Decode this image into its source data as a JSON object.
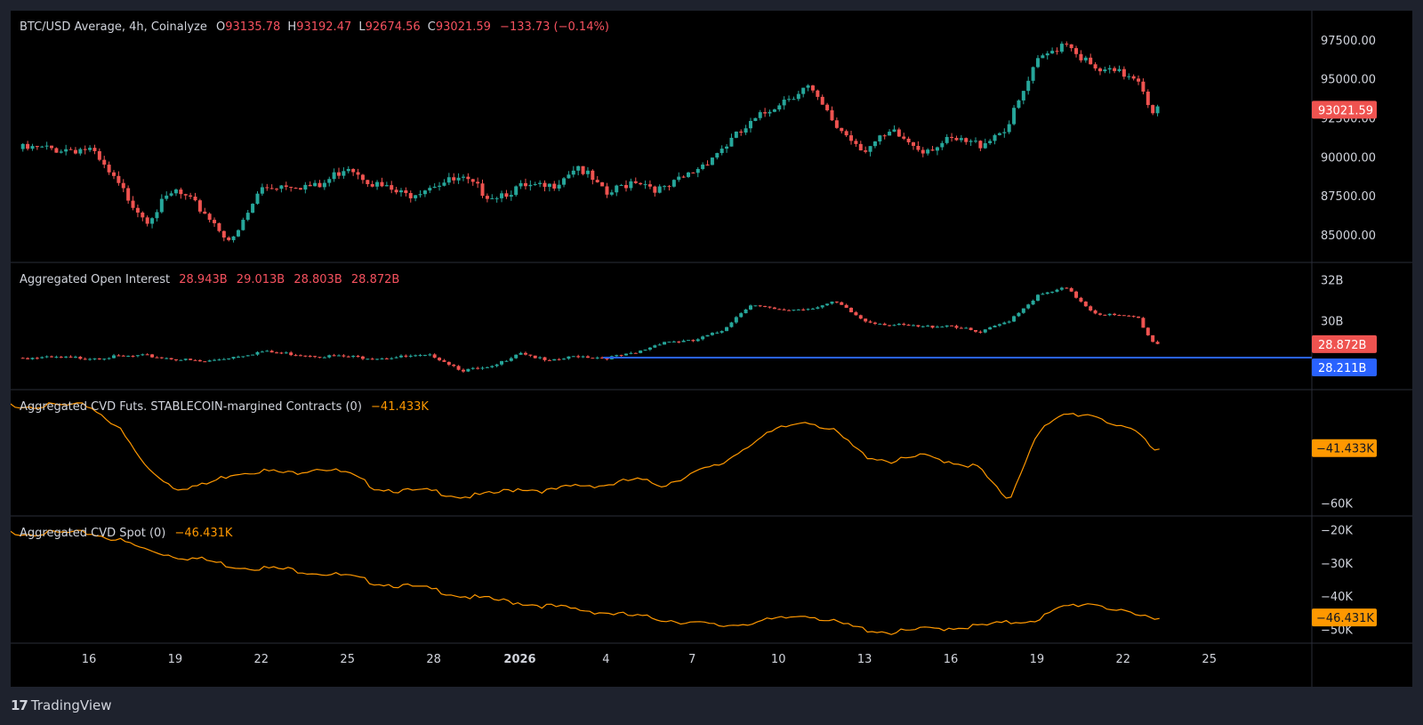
{
  "legends": {
    "price": {
      "label": "BTC/USD Average, 4h, Coinalyze",
      "o_prefix": "O",
      "o": "93135.78",
      "h_prefix": "H",
      "h": "93192.47",
      "l_prefix": "L",
      "l": "92674.56",
      "c_prefix": "C",
      "c": "93021.59",
      "change": "−133.73 (−0.14%)"
    },
    "oi": {
      "label": "Aggregated Open Interest",
      "v1": "28.943B",
      "v2": "29.013B",
      "v3": "28.803B",
      "v4": "28.872B"
    },
    "cvd_futs": {
      "label": "Aggregated CVD Futs. STABLECOIN-margined Contracts (0)",
      "value": "−41.433K"
    },
    "cvd_spot": {
      "label": "Aggregated CVD Spot (0)",
      "value": "−46.431K"
    }
  },
  "brand": {
    "logo": "17",
    "name": "TradingView"
  },
  "colors": {
    "up": "#26a69a",
    "down": "#ef5350",
    "cvd": "#ff9800",
    "hline": "#2962ff",
    "grid_border": "#2a2e39"
  },
  "chart_data": [
    {
      "type": "candlestick",
      "title": "BTC/USD Average, 4h, Coinalyze",
      "x_ticks": [
        "16",
        "19",
        "22",
        "25",
        "28",
        "2026",
        "4",
        "7",
        "10",
        "13",
        "16",
        "19",
        "22",
        "25"
      ],
      "y_ticks": [
        "97500.00",
        "95000.00",
        "92500.00",
        "90000.00",
        "87500.00",
        "85000.00"
      ],
      "ylim": [
        83800,
        98800
      ],
      "last_price_label": "93021.59",
      "last_price": 93021.59,
      "anchors_x_days": [
        0,
        1,
        2,
        3,
        4,
        5,
        6,
        7,
        8,
        9,
        10,
        11,
        12,
        13,
        14,
        15,
        16,
        17,
        18,
        19,
        20,
        21,
        22,
        23,
        24,
        25,
        26,
        27,
        28,
        29,
        30,
        31,
        32,
        33,
        34,
        35,
        36,
        36.5,
        37,
        37.3
      ],
      "anchors_close": [
        90500,
        88200,
        86000,
        87800,
        86500,
        84500,
        88000,
        88300,
        88000,
        89500,
        88200,
        87500,
        88300,
        88500,
        87500,
        88000,
        88000,
        89500,
        87500,
        88600,
        87800,
        89000,
        90500,
        92000,
        93500,
        94500,
        92000,
        90500,
        91500,
        90500,
        91000,
        90800,
        92000,
        96000,
        97500,
        95500,
        95300,
        95200,
        93000,
        93021
      ]
    },
    {
      "type": "line",
      "title": "Aggregated Open Interest",
      "y_ticks": [
        "32B",
        "30B"
      ],
      "ylim": [
        27.0,
        32.5
      ],
      "last_value_label": "28.872B",
      "hline_label": "28.211B",
      "hline_value": 28.211,
      "anchors_x_days": [
        0,
        2,
        4,
        6,
        8,
        10,
        12,
        13,
        14,
        15,
        16,
        17,
        18,
        19,
        20,
        21,
        22,
        23,
        24,
        25,
        26,
        27,
        28,
        29,
        30,
        31,
        32,
        33,
        34,
        35,
        36,
        36.5,
        37,
        37.3
      ],
      "anchors_y": [
        28.2,
        28.3,
        28.0,
        28.5,
        28.3,
        28.2,
        28.3,
        27.6,
        27.7,
        28.5,
        28.0,
        28.3,
        28.2,
        28.4,
        29.0,
        29.0,
        29.5,
        30.8,
        30.5,
        30.6,
        30.9,
        30.0,
        29.8,
        29.7,
        29.8,
        29.4,
        30.0,
        31.2,
        31.6,
        30.4,
        30.2,
        30.2,
        29.0,
        28.87
      ]
    },
    {
      "type": "line",
      "title": "Aggregated CVD Futs. STABLECOIN-margined Contracts (0)",
      "y_ticks": [
        "−60K"
      ],
      "last_value_label": "−41.433K",
      "anchors_x_days": [
        0,
        1,
        2,
        3,
        4,
        5,
        6,
        7,
        8,
        9,
        10,
        11,
        12,
        13,
        14,
        15,
        16,
        17,
        18,
        19,
        20,
        21,
        22,
        23,
        24,
        25,
        26,
        27,
        28,
        29,
        30,
        31,
        32,
        33,
        34,
        35,
        36,
        36.5,
        37,
        37.3
      ],
      "anchors_y": [
        -27,
        -34,
        -48,
        -55,
        -54,
        -50,
        -49,
        -50,
        -48,
        -50,
        -55,
        -56,
        -56,
        -58,
        -57,
        -55,
        -56,
        -54,
        -54,
        -52,
        -54,
        -50,
        -47,
        -40,
        -35,
        -32,
        -36,
        -44,
        -46,
        -44,
        -46,
        -48,
        -60,
        -36,
        -30,
        -30,
        -35,
        -36,
        -41,
        -41.4
      ]
    },
    {
      "type": "line",
      "title": "Aggregated CVD Spot (0)",
      "y_ticks": [
        "−20K",
        "−30K",
        "−40K",
        "−50K"
      ],
      "ylim": [
        -52,
        -18
      ],
      "last_value_label": "−46.431K",
      "anchors_x_days": [
        0,
        1,
        2,
        3,
        4,
        5,
        6,
        7,
        8,
        9,
        10,
        11,
        12,
        13,
        14,
        15,
        16,
        17,
        18,
        19,
        20,
        21,
        22,
        23,
        24,
        25,
        26,
        27,
        28,
        29,
        30,
        31,
        32,
        33,
        34,
        35,
        36,
        36.5,
        37,
        37.3
      ],
      "anchors_y": [
        -21,
        -23,
        -26,
        -28,
        -29,
        -31,
        -31.5,
        -32,
        -33,
        -34,
        -36,
        -37,
        -38,
        -40,
        -41,
        -42,
        -43,
        -44,
        -45,
        -46,
        -47,
        -48,
        -49,
        -48,
        -47,
        -45.5,
        -48,
        -50,
        -51,
        -50,
        -49.5,
        -49,
        -48,
        -47,
        -43,
        -42,
        -45,
        -46,
        -46,
        -46.4
      ]
    }
  ]
}
